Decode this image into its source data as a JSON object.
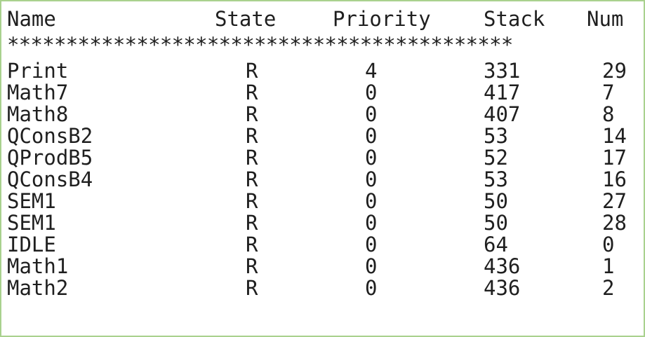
{
  "table": {
    "headers": {
      "name": "Name",
      "state": "State",
      "priority": "Priority",
      "stack": "Stack",
      "num": "Num"
    },
    "separator": "*******************************************",
    "rows": [
      {
        "name": "Print",
        "state": "R",
        "priority": "4",
        "stack": "331",
        "num": "29"
      },
      {
        "name": "Math7",
        "state": "R",
        "priority": "0",
        "stack": "417",
        "num": "7"
      },
      {
        "name": "Math8",
        "state": "R",
        "priority": "0",
        "stack": "407",
        "num": "8"
      },
      {
        "name": "QConsB2",
        "state": "R",
        "priority": "0",
        "stack": "53",
        "num": "14"
      },
      {
        "name": "QProdB5",
        "state": "R",
        "priority": "0",
        "stack": "52",
        "num": "17"
      },
      {
        "name": "QConsB4",
        "state": "R",
        "priority": "0",
        "stack": "53",
        "num": "16"
      },
      {
        "name": "SEM1",
        "state": "R",
        "priority": "0",
        "stack": "50",
        "num": "27"
      },
      {
        "name": "SEM1",
        "state": "R",
        "priority": "0",
        "stack": "50",
        "num": "28"
      },
      {
        "name": "IDLE",
        "state": "R",
        "priority": "0",
        "stack": "64",
        "num": "0"
      },
      {
        "name": "Math1",
        "state": "R",
        "priority": "0",
        "stack": "436",
        "num": "1"
      },
      {
        "name": "Math2",
        "state": "R",
        "priority": "0",
        "stack": "436",
        "num": "2"
      }
    ]
  },
  "colors": {
    "border": "#a9d18e",
    "text": "#1f1f1f",
    "background": "#ffffff"
  }
}
